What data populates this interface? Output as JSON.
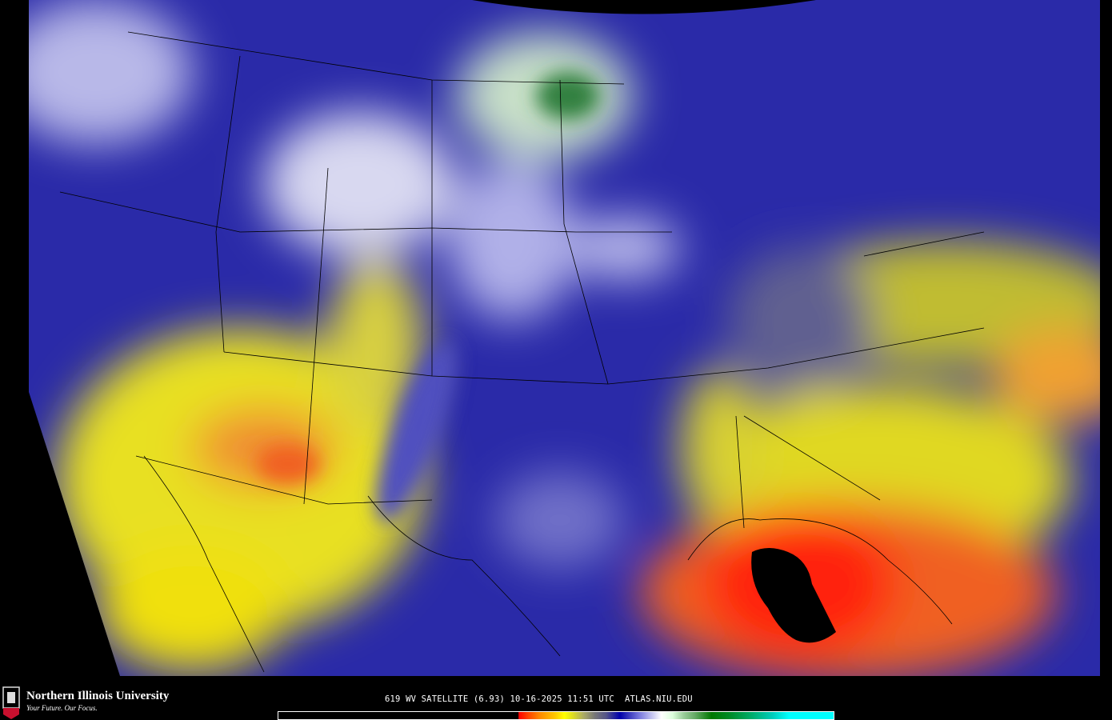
{
  "map": {
    "product": "WV satellite water vapor imagery",
    "region": "Continental United States",
    "colors": {
      "background": "#000000",
      "dry_red": "#ff0000",
      "orange": "#ff9900",
      "yellow": "#f0f000",
      "moist_blue": "#2020b0",
      "white": "#ffffff",
      "green": "#208040",
      "boundaries": "#000000"
    }
  },
  "footer": {
    "logo_text": "NIU",
    "university_name": "Northern Illinois University",
    "tagline": "Your Future. Our Focus.",
    "caption": "619 WV SATELLITE (6.93) 10-16-2025 11:51 UTC  ATLAS.NIU.EDU",
    "colorbar_colors": [
      "#000000",
      "#ff0000",
      "#ff8800",
      "#ffff00",
      "#aaaa66",
      "#777777",
      "#0000aa",
      "#7777dd",
      "#ffffff",
      "#99cc99",
      "#007700",
      "#00aa66",
      "#00ffff"
    ]
  }
}
